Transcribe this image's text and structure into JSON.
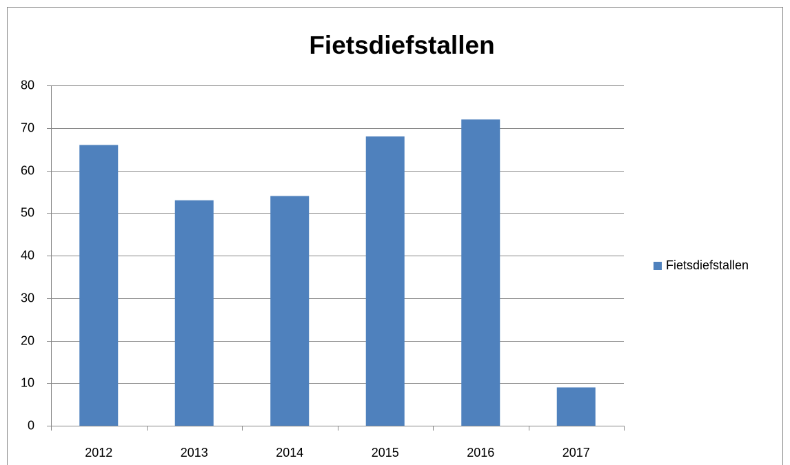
{
  "chart_data": {
    "type": "bar",
    "title": "Fietsdiefstallen",
    "categories": [
      "2012",
      "2013",
      "2014",
      "2015",
      "2016",
      "2017"
    ],
    "series": [
      {
        "name": "Fietsdiefstallen",
        "color": "#4f81bd",
        "values": [
          66,
          53,
          54,
          68,
          72,
          9
        ]
      }
    ],
    "ylim": [
      0,
      80
    ],
    "yticks": [
      0,
      10,
      20,
      30,
      40,
      50,
      60,
      70,
      80
    ],
    "grid": true,
    "legend": "right"
  }
}
